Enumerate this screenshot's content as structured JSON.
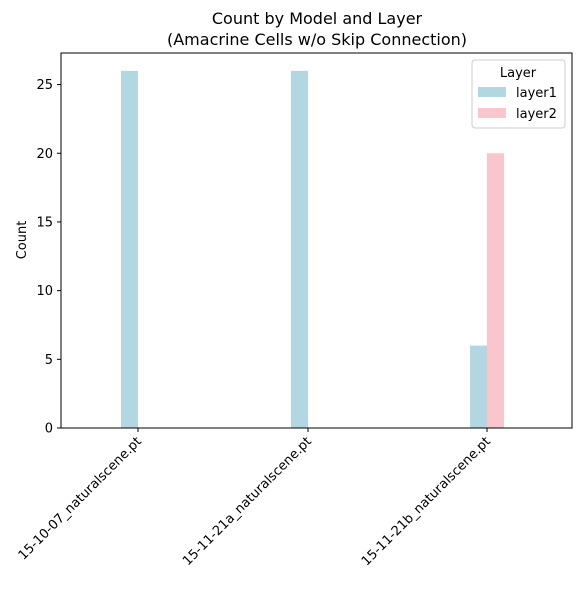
{
  "chart_data": {
    "type": "bar",
    "title_line1": "Count by Model and Layer",
    "title_line2": "(Amacrine Cells w/o Skip Connection)",
    "xlabel": "",
    "ylabel": "Count",
    "categories": [
      "15-10-07_naturalscene.pt",
      "15-11-21a_naturalscene.pt",
      "15-11-21b_naturalscene.pt"
    ],
    "series": [
      {
        "name": "layer1",
        "values": [
          26,
          26,
          6
        ],
        "color": "#b3d7e2"
      },
      {
        "name": "layer2",
        "values": [
          0,
          0,
          20
        ],
        "color": "#f8c6cc"
      }
    ],
    "ylim": [
      0,
      27.3
    ],
    "yticks": [
      0,
      5,
      10,
      15,
      20,
      25
    ],
    "grid": false,
    "legend": {
      "title": "Layer",
      "placement": "top-right"
    }
  }
}
